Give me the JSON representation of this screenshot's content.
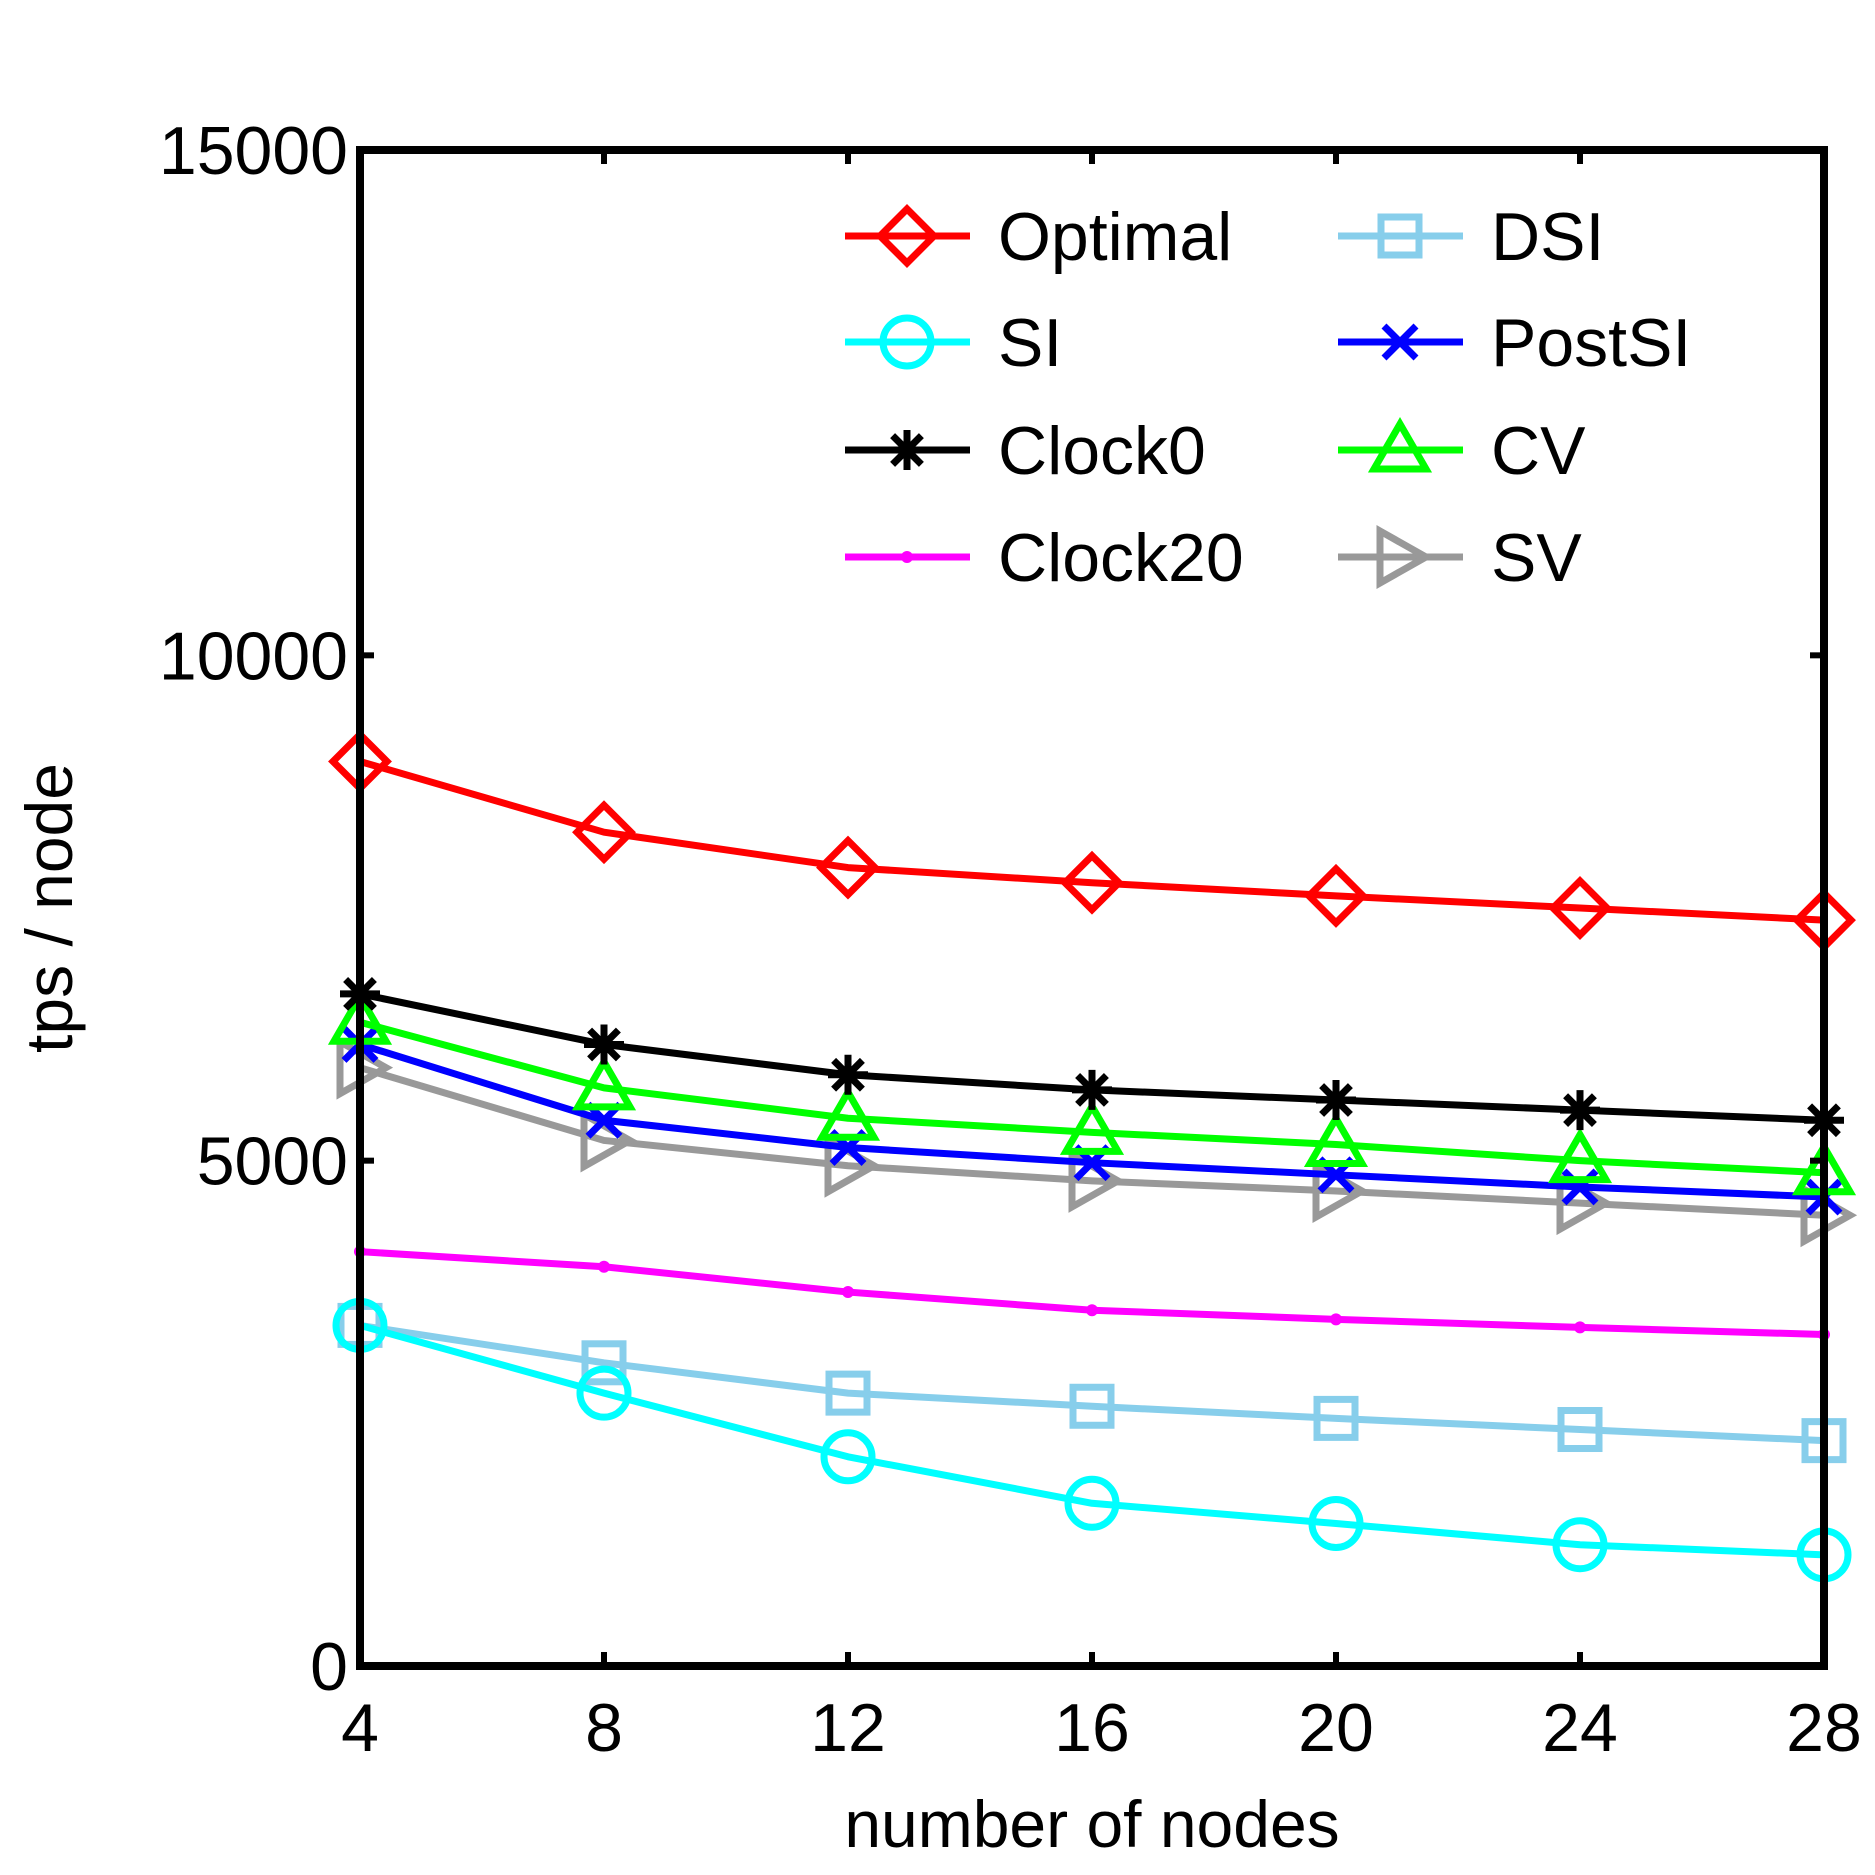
{
  "chart_data": {
    "type": "line",
    "title": "",
    "xlabel": "number of nodes",
    "ylabel": "tps / node",
    "x": [
      4,
      8,
      12,
      16,
      20,
      24,
      28
    ],
    "xlim": [
      4,
      28
    ],
    "ylim": [
      0,
      15000
    ],
    "xticks": [
      "4",
      "8",
      "12",
      "16",
      "20",
      "24",
      "28"
    ],
    "yticks": [
      "0",
      "5000",
      "10000",
      "15000"
    ],
    "grid": false,
    "legend": {
      "position": "top-right",
      "columns": 2
    },
    "series": [
      {
        "name": "Optimal",
        "color": "#ff0000",
        "marker": "diamond",
        "values": [
          8950,
          8250,
          7900,
          7750,
          7620,
          7500,
          7380
        ]
      },
      {
        "name": "SI",
        "color": "#00ffff",
        "marker": "circle",
        "values": [
          3370,
          2700,
          2070,
          1610,
          1410,
          1200,
          1100
        ]
      },
      {
        "name": "Clock0",
        "color": "#000000",
        "marker": "asterisk",
        "values": [
          6650,
          6150,
          5850,
          5700,
          5600,
          5500,
          5400
        ]
      },
      {
        "name": "Clock20",
        "color": "#ff00ff",
        "marker": "dot",
        "values": [
          4100,
          3950,
          3700,
          3520,
          3430,
          3350,
          3280
        ]
      },
      {
        "name": "DSI",
        "color": "#87ceeb",
        "marker": "square",
        "values": [
          3370,
          3000,
          2700,
          2570,
          2450,
          2340,
          2230
        ]
      },
      {
        "name": "PostSI",
        "color": "#0000ff",
        "marker": "x",
        "values": [
          6150,
          5400,
          5130,
          4980,
          4860,
          4740,
          4640
        ]
      },
      {
        "name": "CV",
        "color": "#00ff00",
        "marker": "triangle-up",
        "values": [
          6370,
          5720,
          5420,
          5280,
          5160,
          5000,
          4880
        ]
      },
      {
        "name": "SV",
        "color": "#999999",
        "marker": "triangle-right",
        "values": [
          5920,
          5200,
          4950,
          4800,
          4700,
          4580,
          4460
        ]
      }
    ]
  }
}
